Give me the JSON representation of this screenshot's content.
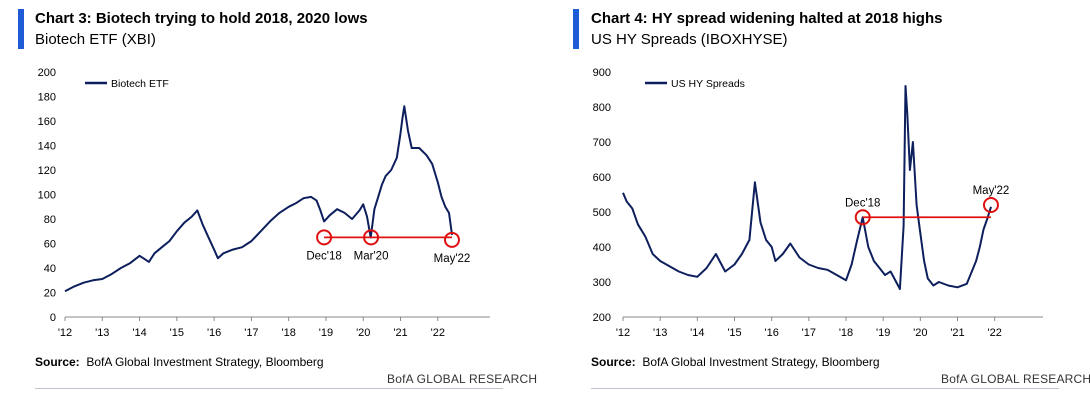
{
  "colors": {
    "series": "#0d1f5c",
    "accent": "#1f5bd6",
    "annotation": "#e01010"
  },
  "chart_data": [
    {
      "type": "line",
      "title": "Chart 3: Biotech trying to hold 2018, 2020 lows",
      "subtitle": "Biotech ETF (XBI)",
      "ylim": [
        0,
        200
      ],
      "yticks": [
        0,
        20,
        40,
        60,
        80,
        100,
        120,
        140,
        160,
        180,
        200
      ],
      "xlim": [
        2012,
        2023.4
      ],
      "xticks": [
        {
          "v": 2012,
          "label": "'12"
        },
        {
          "v": 2013,
          "label": "'13"
        },
        {
          "v": 2014,
          "label": "'14"
        },
        {
          "v": 2015,
          "label": "'15"
        },
        {
          "v": 2016,
          "label": "'16"
        },
        {
          "v": 2017,
          "label": "'17"
        },
        {
          "v": 2018,
          "label": "'18"
        },
        {
          "v": 2019,
          "label": "'19"
        },
        {
          "v": 2020,
          "label": "'20"
        },
        {
          "v": 2021,
          "label": "'21"
        },
        {
          "v": 2022,
          "label": "'22"
        }
      ],
      "legend": "top-left",
      "series": [
        {
          "name": "Biotech ETF",
          "x": [
            2012.0,
            2012.25,
            2012.5,
            2012.75,
            2013.0,
            2013.25,
            2013.5,
            2013.75,
            2014.0,
            2014.1,
            2014.25,
            2014.4,
            2014.6,
            2014.8,
            2015.0,
            2015.2,
            2015.4,
            2015.55,
            2015.7,
            2015.85,
            2016.0,
            2016.1,
            2016.25,
            2016.5,
            2016.75,
            2016.9,
            2017.0,
            2017.25,
            2017.5,
            2017.75,
            2018.0,
            2018.2,
            2018.4,
            2018.6,
            2018.75,
            2018.85,
            2018.95,
            2019.1,
            2019.3,
            2019.5,
            2019.7,
            2019.9,
            2020.0,
            2020.1,
            2020.2,
            2020.3,
            2020.4,
            2020.5,
            2020.6,
            2020.75,
            2020.9,
            2021.0,
            2021.05,
            2021.1,
            2021.2,
            2021.3,
            2021.5,
            2021.7,
            2021.85,
            2022.0,
            2022.1,
            2022.2,
            2022.3,
            2022.38
          ],
          "y": [
            21,
            25,
            28,
            30,
            31,
            35,
            40,
            44,
            50,
            48,
            45,
            52,
            57,
            62,
            70,
            77,
            82,
            87,
            75,
            65,
            55,
            48,
            52,
            55,
            57,
            60,
            62,
            70,
            78,
            85,
            90,
            93,
            97,
            98,
            95,
            87,
            78,
            83,
            88,
            85,
            80,
            87,
            92,
            82,
            65,
            88,
            98,
            108,
            115,
            120,
            130,
            150,
            162,
            172,
            152,
            138,
            138,
            132,
            125,
            110,
            98,
            90,
            85,
            67
          ]
        }
      ],
      "annotations": {
        "reference_y": 65,
        "points": [
          {
            "x": 2018.95,
            "y": 65,
            "label": "Dec'18"
          },
          {
            "x": 2020.21,
            "y": 65,
            "label": "Mar'20"
          },
          {
            "x": 2022.38,
            "y": 63,
            "label": "May'22"
          }
        ]
      },
      "source_label": "Source:",
      "source_text": "BofA Global Investment Strategy, Bloomberg",
      "footer": "BofA GLOBAL RESEARCH"
    },
    {
      "type": "line",
      "title": "Chart 4: HY spread widening halted at 2018 highs",
      "subtitle": "US HY Spreads (IBOXHYSE)",
      "ylim": [
        200,
        900
      ],
      "yticks": [
        200,
        300,
        400,
        500,
        600,
        700,
        800,
        900
      ],
      "xlim": [
        2012,
        2023.3
      ],
      "xticks": [
        {
          "v": 2012,
          "label": "'12"
        },
        {
          "v": 2013,
          "label": "'13"
        },
        {
          "v": 2014,
          "label": "'14"
        },
        {
          "v": 2015,
          "label": "'15"
        },
        {
          "v": 2016,
          "label": "'16"
        },
        {
          "v": 2017,
          "label": "'17"
        },
        {
          "v": 2018,
          "label": "'18"
        },
        {
          "v": 2019,
          "label": "'19"
        },
        {
          "v": 2020,
          "label": "'20"
        },
        {
          "v": 2021,
          "label": "'21"
        },
        {
          "v": 2022,
          "label": "'22"
        }
      ],
      "legend": "top-left",
      "series": [
        {
          "name": "US HY Spreads",
          "x": [
            2012.0,
            2012.1,
            2012.25,
            2012.4,
            2012.6,
            2012.8,
            2013.0,
            2013.25,
            2013.5,
            2013.75,
            2014.0,
            2014.25,
            2014.5,
            2014.75,
            2015.0,
            2015.2,
            2015.4,
            2015.55,
            2015.7,
            2015.85,
            2016.0,
            2016.1,
            2016.3,
            2016.5,
            2016.75,
            2017.0,
            2017.25,
            2017.5,
            2017.75,
            2018.0,
            2018.15,
            2018.3,
            2018.45,
            2018.6,
            2018.75,
            2018.9,
            2019.05,
            2019.2,
            2019.35,
            2019.45,
            2019.55,
            2019.6,
            2019.65,
            2019.72,
            2019.8,
            2019.9,
            2020.0,
            2020.1,
            2020.2,
            2020.35,
            2020.5,
            2020.75,
            2021.0,
            2021.25,
            2021.5,
            2021.6,
            2021.7,
            2021.8,
            2021.9
          ],
          "y": [
            555,
            530,
            510,
            465,
            430,
            380,
            360,
            345,
            330,
            320,
            315,
            340,
            380,
            330,
            350,
            380,
            420,
            585,
            470,
            420,
            400,
            360,
            380,
            410,
            370,
            350,
            340,
            335,
            320,
            305,
            350,
            420,
            485,
            400,
            360,
            340,
            320,
            330,
            300,
            280,
            460,
            860,
            780,
            620,
            700,
            520,
            440,
            360,
            310,
            290,
            300,
            290,
            285,
            295,
            360,
            400,
            450,
            480,
            515
          ]
        }
      ],
      "annotations": {
        "reference_y": 485,
        "points": [
          {
            "x": 2018.45,
            "y": 485,
            "label": "Dec'18"
          },
          {
            "x": 2021.9,
            "y": 520,
            "label": "May'22"
          }
        ]
      },
      "source_label": "Source:",
      "source_text": "BofA Global Investment Strategy, Bloomberg",
      "footer": "BofA GLOBAL RESEARCH"
    }
  ]
}
